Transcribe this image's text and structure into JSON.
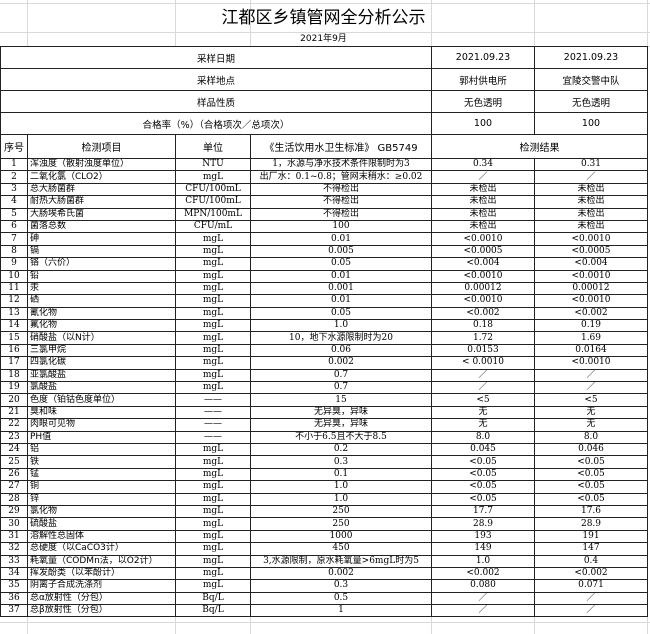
{
  "title": "江都区乡镇管网全分析公示",
  "month": "2021年9月",
  "header": {
    "sampling_date_label": "采样日期",
    "sampling_date": [
      "2021.09.23",
      "2021.09.23"
    ],
    "sampling_site_label": "采样地点",
    "sampling_site": [
      "郭村供电所",
      "宜陵交警中队"
    ],
    "sample_nature_label": "样品性质",
    "sample_nature": [
      "无色透明",
      "无色透明"
    ],
    "pass_rate_label": "合格率（%）（合格项次／总项次）",
    "pass_rate": [
      "100",
      "100"
    ]
  },
  "columns": {
    "no": "序号",
    "item": "检测项目",
    "unit": "单位",
    "standard": "《生活饮用水卫生标准》 GB5749",
    "result": "检测结果"
  },
  "rows": [
    {
      "no": "1",
      "item": "浑浊度（散射浊度单位）",
      "unit": "NTU",
      "std": "1，水源与净水技术条件限制时为3",
      "r1": "0.34",
      "r2": "0.31"
    },
    {
      "no": "2",
      "item": "二氧化氯（CLO2）",
      "unit": "mgL",
      "std": "出厂水：0.1~0.8；管网末稍水：≥0.02",
      "r1": "／",
      "r2": "／"
    },
    {
      "no": "3",
      "item": "总大肠菌群",
      "unit": "CFU/100mL",
      "std": "不得检出",
      "r1": "未检出",
      "r2": "未检出"
    },
    {
      "no": "4",
      "item": "耐热大肠菌群",
      "unit": "CFU/100mL",
      "std": "不得检出",
      "r1": "未检出",
      "r2": "未检出"
    },
    {
      "no": "5",
      "item": "大肠埃希氏菌",
      "unit": "MPN/100mL",
      "std": "不得检出",
      "r1": "未检出",
      "r2": "未检出"
    },
    {
      "no": "6",
      "item": "菌落总数",
      "unit": "CFU/mL",
      "std": "100",
      "r1": "未检出",
      "r2": "未检出"
    },
    {
      "no": "7",
      "item": "砷",
      "unit": "mgL",
      "std": "0.01",
      "r1": "<0.0010",
      "r2": "<0.0010"
    },
    {
      "no": "8",
      "item": "镉",
      "unit": "mgL",
      "std": "0.005",
      "r1": "<0.0005",
      "r2": "<0.0005"
    },
    {
      "no": "9",
      "item": "铬（六价）",
      "unit": "mgL",
      "std": "0.05",
      "r1": "<0.004",
      "r2": "<0.004"
    },
    {
      "no": "10",
      "item": "铅",
      "unit": "mgL",
      "std": "0.01",
      "r1": "<0.0010",
      "r2": "<0.0010"
    },
    {
      "no": "11",
      "item": "汞",
      "unit": "mgL",
      "std": "0.001",
      "r1": "0.00012",
      "r2": "0.00012"
    },
    {
      "no": "12",
      "item": "硒",
      "unit": "mgL",
      "std": "0.01",
      "r1": "<0.0010",
      "r2": "<0.0010"
    },
    {
      "no": "13",
      "item": "氰化物",
      "unit": "mgL",
      "std": "0.05",
      "r1": "<0.002",
      "r2": "<0.002"
    },
    {
      "no": "14",
      "item": "氟化物",
      "unit": "mgL",
      "std": "1.0",
      "r1": "0.18",
      "r2": "0.19"
    },
    {
      "no": "15",
      "item": "硝酸盐（以N计）",
      "unit": "mgL",
      "std": "10，地下水源限制时为20",
      "r1": "1.72",
      "r2": "1.69"
    },
    {
      "no": "16",
      "item": "三氯甲烷",
      "unit": "mgL",
      "std": "0.06",
      "r1": "0.0153",
      "r2": "0.0164"
    },
    {
      "no": "17",
      "item": "四氯化碳",
      "unit": "mgL",
      "std": "0.002",
      "r1": "< 0.0010",
      "r2": "<0.0010"
    },
    {
      "no": "18",
      "item": "亚氯酸盐",
      "unit": "mgL",
      "std": "0.7",
      "r1": "／",
      "r2": "／"
    },
    {
      "no": "19",
      "item": "氯酸盐",
      "unit": "mgL",
      "std": "0.7",
      "r1": "／",
      "r2": "／"
    },
    {
      "no": "20",
      "item": "色度（铂钴色度单位）",
      "unit": "——",
      "std": "15",
      "r1": "<5",
      "r2": "<5"
    },
    {
      "no": "21",
      "item": "臭和味",
      "unit": "——",
      "std": "无异臭，异味",
      "r1": "无",
      "r2": "无"
    },
    {
      "no": "22",
      "item": "肉眼可见物",
      "unit": "——",
      "std": "无异臭，异味",
      "r1": "无",
      "r2": "无"
    },
    {
      "no": "23",
      "item": "PH值",
      "unit": "——",
      "std": "不小于6.5且不大于8.5",
      "r1": "8.0",
      "r2": "8.0"
    },
    {
      "no": "24",
      "item": "铝",
      "unit": "mgL",
      "std": "0.2",
      "r1": "0.045",
      "r2": "0.046"
    },
    {
      "no": "25",
      "item": "铁",
      "unit": "mgL",
      "std": "0.3",
      "r1": "<0.05",
      "r2": "<0.05"
    },
    {
      "no": "26",
      "item": "锰",
      "unit": "mgL",
      "std": "0.1",
      "r1": "<0.05",
      "r2": "<0.05"
    },
    {
      "no": "27",
      "item": "铜",
      "unit": "mgL",
      "std": "1.0",
      "r1": "<0.05",
      "r2": "<0.05"
    },
    {
      "no": "28",
      "item": "锌",
      "unit": "mgL",
      "std": "1.0",
      "r1": "<0.05",
      "r2": "<0.05"
    },
    {
      "no": "29",
      "item": "氯化物",
      "unit": "mgL",
      "std": "250",
      "r1": "17.7",
      "r2": "17.6"
    },
    {
      "no": "30",
      "item": "硫酸盐",
      "unit": "mgL",
      "std": "250",
      "r1": "28.9",
      "r2": "28.9"
    },
    {
      "no": "31",
      "item": "溶解性总固体",
      "unit": "mgL",
      "std": "1000",
      "r1": "193",
      "r2": "191"
    },
    {
      "no": "32",
      "item": "总硬度（以CaCO3计）",
      "unit": "mgL",
      "std": "450",
      "r1": "149",
      "r2": "147"
    },
    {
      "no": "33",
      "item": "耗氧量（CODMn法，以O2计）",
      "unit": "mgL",
      "std": "3,水源限制，原水耗氧量>6mgL时为5",
      "r1": "1.0",
      "r2": "0.4"
    },
    {
      "no": "34",
      "item": "挥发酚类（以苯酚计）",
      "unit": "mgL",
      "std": "0.002",
      "r1": "<0.002",
      "r2": "<0.002"
    },
    {
      "no": "35",
      "item": "阴离子合成洗涤剂",
      "unit": "mgL",
      "std": "0.3",
      "r1": "0.080",
      "r2": "0.071"
    },
    {
      "no": "36",
      "item": "总α放射性（分包）",
      "unit": "Bq/L",
      "std": "0.5",
      "r1": "／",
      "r2": "／"
    },
    {
      "no": "37",
      "item": "总β放射性（分包）",
      "unit": "Bq/L",
      "std": "1",
      "r1": "／",
      "r2": "／"
    }
  ]
}
